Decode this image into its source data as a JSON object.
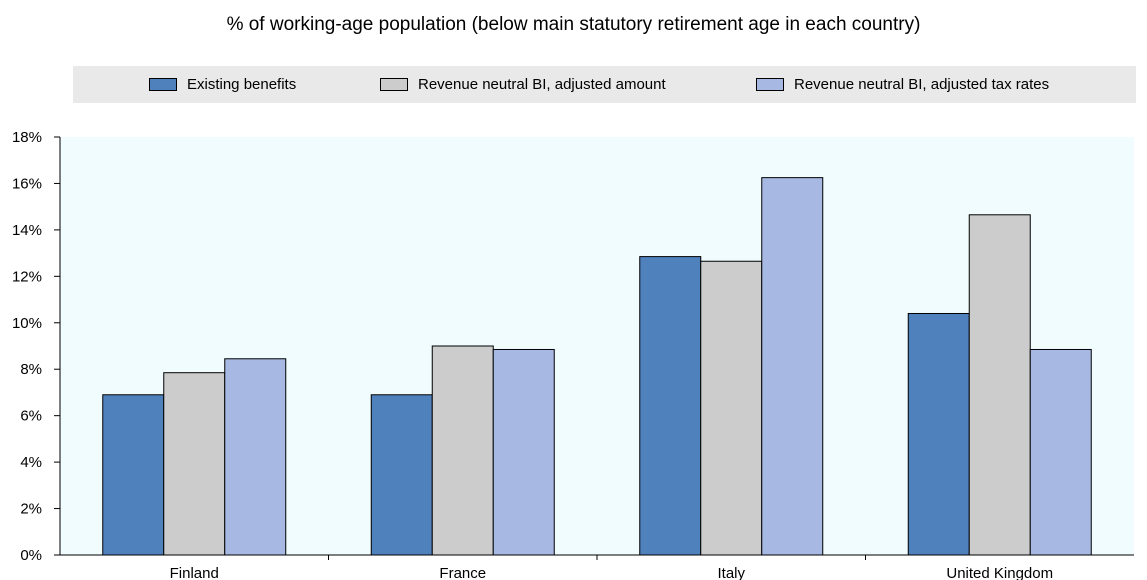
{
  "chart_data": {
    "type": "bar",
    "title": "% of working-age population (below main statutory retirement age in each country)",
    "categories": [
      "Finland",
      "France",
      "Italy",
      "United Kingdom"
    ],
    "series": [
      {
        "name": "Existing benefits",
        "color": "#4f81bd",
        "values": [
          6.9,
          6.9,
          12.85,
          10.4
        ]
      },
      {
        "name": "Revenue neutral BI, adjusted amount",
        "color": "#cccccc",
        "values": [
          7.85,
          9.0,
          12.65,
          14.65
        ]
      },
      {
        "name": "Revenue neutral BI, adjusted tax rates",
        "color": "#a7b9e3",
        "values": [
          8.45,
          8.85,
          16.25,
          8.85
        ]
      }
    ],
    "yticks": [
      "0%",
      "2%",
      "4%",
      "6%",
      "8%",
      "10%",
      "12%",
      "14%",
      "16%",
      "18%"
    ],
    "ylim": [
      0,
      18
    ],
    "grid": false,
    "legend_position": "top",
    "plot_background": "#f0fcfe"
  }
}
